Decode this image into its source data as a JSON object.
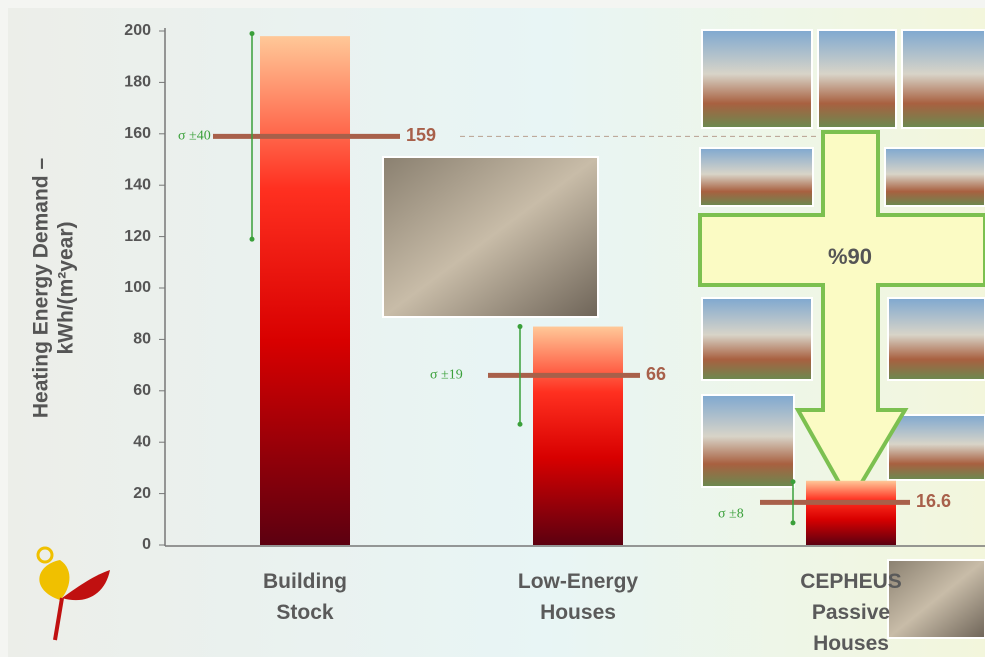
{
  "chart_data": {
    "type": "bar",
    "y_label": [
      "Heating Energy Demand –",
      "kWh/(m²year)"
    ],
    "categories": [
      "Building Stock",
      "Low-Energy Houses",
      "CEPHEUS Passive Houses"
    ],
    "values": [
      198,
      85,
      25
    ],
    "means": [
      159,
      66,
      16.6
    ],
    "errors": [
      40,
      19,
      8
    ],
    "error_labels": [
      "σ ±40",
      "σ ±19",
      "σ ±8"
    ],
    "annotation": "%90",
    "ylim": [
      0,
      200
    ],
    "yticks": [
      0,
      20,
      40,
      60,
      80,
      100,
      120,
      140,
      160,
      180,
      200
    ],
    "mean_color": "#a8604a",
    "error_color": "#3aa03a"
  }
}
